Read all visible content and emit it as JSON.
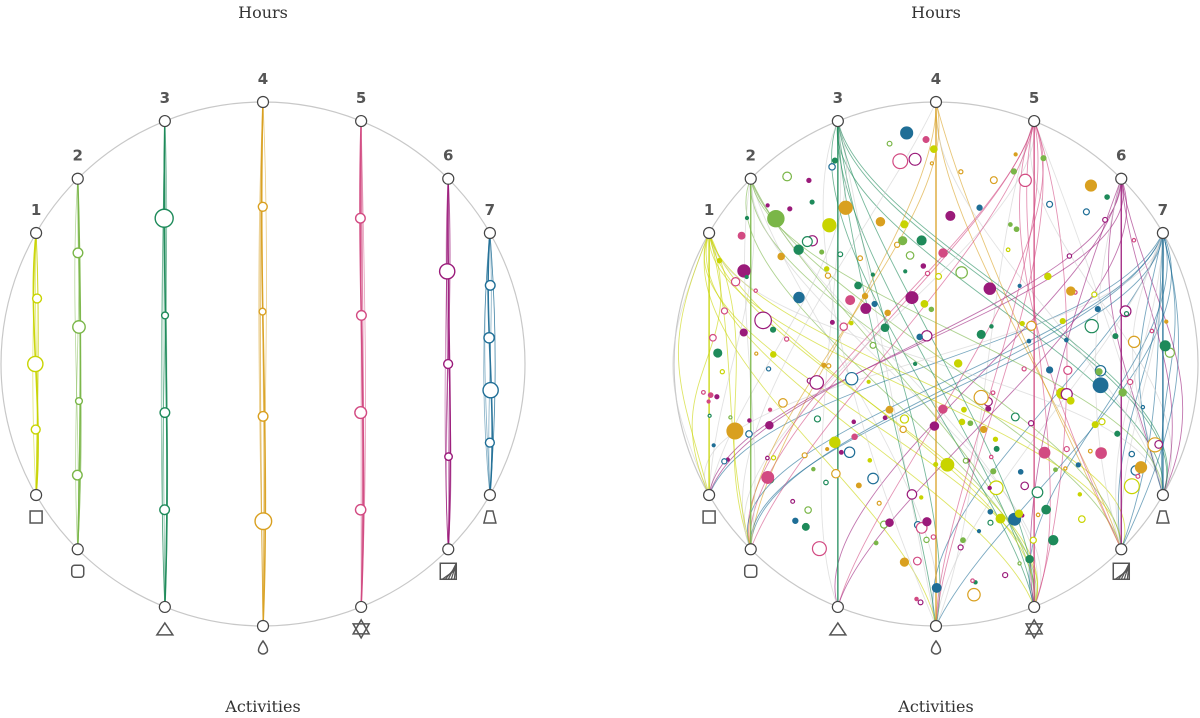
{
  "top_label": "Hours",
  "bottom_label": "Activities",
  "hour_numbers": [
    "1",
    "2",
    "3",
    "4",
    "5",
    "6",
    "7"
  ],
  "activity_icons": [
    "square-icon",
    "rounded-square-icon",
    "triangle-icon",
    "drop-icon",
    "star-of-david-icon",
    "hatched-square-icon",
    "trapezoid-icon"
  ],
  "colors": [
    "#c8d400",
    "#7ab648",
    "#1e8a5a",
    "#d9a020",
    "#d24a82",
    "#9a1a7a",
    "#1f6e96"
  ],
  "panels": [
    {
      "name": "left-diagram",
      "mode": "separated",
      "activity_nodes": [
        {
          "hour": 1,
          "size": [
            0.35,
            0.8,
            0.35
          ]
        },
        {
          "hour": 2,
          "size": [
            0.4,
            0.6,
            0.2,
            0.4
          ]
        },
        {
          "hour": 3,
          "size": [
            1.0,
            0.2,
            0.4,
            0.4
          ]
        },
        {
          "hour": 4,
          "size": [
            0.35,
            0.2,
            0.4,
            0.9
          ]
        },
        {
          "hour": 5,
          "size": [
            0.4,
            0.4,
            0.55,
            0.45
          ]
        },
        {
          "hour": 6,
          "size": [
            0.8,
            0.35,
            0.25
          ]
        },
        {
          "hour": 7,
          "size": [
            0.4,
            0.45,
            0.8,
            0.35
          ]
        }
      ]
    },
    {
      "name": "right-diagram",
      "mode": "mixed",
      "activity_nodes": []
    }
  ]
}
